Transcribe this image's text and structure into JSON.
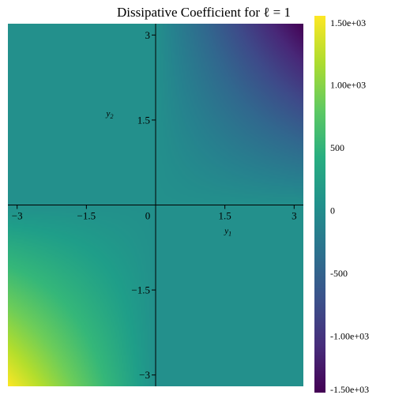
{
  "chart_data": {
    "type": "heatmap",
    "title": "Dissipative Coefficient for ℓ = 1",
    "xlabel": "y",
    "xlabel_sub": "1",
    "ylabel": "y",
    "ylabel_sub": "2",
    "xlim": [
      -3.2,
      3.2
    ],
    "ylim": [
      -3.2,
      3.2
    ],
    "x_ticks": [
      {
        "value": -3,
        "label": "−3"
      },
      {
        "value": -1.5,
        "label": "−1.5"
      },
      {
        "value": 1.5,
        "label": "1.5"
      },
      {
        "value": 3,
        "label": "3"
      }
    ],
    "y_ticks": [
      {
        "value": 3,
        "label": "3"
      },
      {
        "value": 1.5,
        "label": "1.5"
      },
      {
        "value": -1.5,
        "label": "−1.5"
      },
      {
        "value": -3,
        "label": "−3"
      }
    ],
    "origin_label": "0",
    "grid": false,
    "colormap": "viridis",
    "function": "value ≈ -150·y1·y2 in first quadrant, +150·y1·y2 in third quadrant, 0 elsewhere",
    "quadrant_values": {
      "q1_corner": -1500,
      "q3_corner": 1500,
      "q2": 0,
      "q4": 0
    },
    "colorbar": {
      "range": [
        -1500,
        1500
      ],
      "ticks": [
        {
          "value": 1500,
          "label": "1.50e+03"
        },
        {
          "value": 1000,
          "label": "1.00e+03"
        },
        {
          "value": 500,
          "label": "500"
        },
        {
          "value": 0,
          "label": "0"
        },
        {
          "value": -500,
          "label": "-500"
        },
        {
          "value": -1000,
          "label": "-1.00e+03"
        },
        {
          "value": -1500,
          "label": "-1.50e+03"
        }
      ]
    }
  }
}
